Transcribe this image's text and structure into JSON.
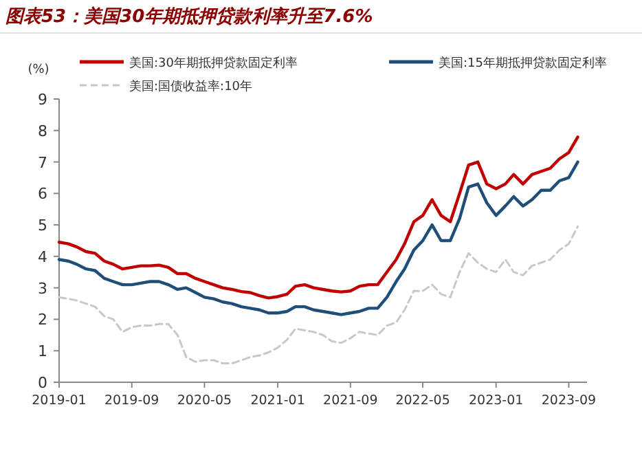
{
  "chart_data": {
    "type": "line",
    "title": "图表53：美国30年期抵押贷款利率升至7.6%",
    "ylabel": "(%)",
    "x": [
      "2019-01",
      "2019-02",
      "2019-03",
      "2019-04",
      "2019-05",
      "2019-06",
      "2019-07",
      "2019-08",
      "2019-09",
      "2019-10",
      "2019-11",
      "2019-12",
      "2020-01",
      "2020-02",
      "2020-03",
      "2020-04",
      "2020-05",
      "2020-06",
      "2020-07",
      "2020-08",
      "2020-09",
      "2020-10",
      "2020-11",
      "2020-12",
      "2021-01",
      "2021-02",
      "2021-03",
      "2021-04",
      "2021-05",
      "2021-06",
      "2021-07",
      "2021-08",
      "2021-09",
      "2021-10",
      "2021-11",
      "2021-12",
      "2022-01",
      "2022-02",
      "2022-03",
      "2022-04",
      "2022-05",
      "2022-06",
      "2022-07",
      "2022-08",
      "2022-09",
      "2022-10",
      "2022-11",
      "2022-12",
      "2023-01",
      "2023-02",
      "2023-03",
      "2023-04",
      "2023-05",
      "2023-06",
      "2023-07",
      "2023-08",
      "2023-09",
      "2023-10"
    ],
    "series": [
      {
        "name": "美国:30年期抵押贷款固定利率",
        "color": "#c00000",
        "line_style": "solid",
        "values": [
          4.45,
          4.4,
          4.3,
          4.15,
          4.1,
          3.85,
          3.75,
          3.6,
          3.65,
          3.7,
          3.7,
          3.72,
          3.65,
          3.45,
          3.45,
          3.3,
          3.2,
          3.1,
          3.0,
          2.95,
          2.88,
          2.85,
          2.75,
          2.68,
          2.72,
          2.8,
          3.05,
          3.1,
          3.0,
          2.95,
          2.9,
          2.87,
          2.9,
          3.05,
          3.1,
          3.1,
          3.5,
          3.9,
          4.4,
          5.1,
          5.3,
          5.8,
          5.3,
          5.1,
          6.0,
          6.9,
          7.0,
          6.3,
          6.15,
          6.3,
          6.6,
          6.3,
          6.6,
          6.7,
          6.8,
          7.1,
          7.3,
          7.79
        ]
      },
      {
        "name": "美国:15年期抵押贷款固定利率",
        "color": "#1f4e79",
        "line_style": "solid",
        "values": [
          3.9,
          3.85,
          3.75,
          3.6,
          3.55,
          3.3,
          3.2,
          3.1,
          3.1,
          3.15,
          3.2,
          3.2,
          3.1,
          2.95,
          3.0,
          2.85,
          2.7,
          2.65,
          2.55,
          2.5,
          2.4,
          2.35,
          2.3,
          2.2,
          2.2,
          2.25,
          2.4,
          2.4,
          2.3,
          2.25,
          2.2,
          2.15,
          2.2,
          2.25,
          2.35,
          2.35,
          2.7,
          3.2,
          3.6,
          4.2,
          4.5,
          5.0,
          4.5,
          4.5,
          5.2,
          6.2,
          6.3,
          5.7,
          5.3,
          5.6,
          5.9,
          5.6,
          5.8,
          6.1,
          6.1,
          6.4,
          6.5,
          7.0
        ]
      },
      {
        "name": "美国:国债收益率:10年",
        "color": "#c8c8c8",
        "line_style": "dashed",
        "values": [
          2.7,
          2.65,
          2.6,
          2.5,
          2.4,
          2.1,
          2.0,
          1.6,
          1.75,
          1.8,
          1.8,
          1.85,
          1.85,
          1.5,
          0.8,
          0.65,
          0.7,
          0.7,
          0.6,
          0.6,
          0.7,
          0.8,
          0.85,
          0.95,
          1.1,
          1.35,
          1.7,
          1.65,
          1.6,
          1.5,
          1.3,
          1.25,
          1.4,
          1.6,
          1.55,
          1.5,
          1.8,
          1.9,
          2.3,
          2.9,
          2.9,
          3.1,
          2.8,
          2.7,
          3.5,
          4.1,
          3.8,
          3.6,
          3.5,
          3.9,
          3.5,
          3.4,
          3.7,
          3.8,
          3.9,
          4.2,
          4.4,
          4.95
        ]
      }
    ],
    "xlim": [
      "2019-01",
      "2023-11"
    ],
    "xticks": [
      "2019-01",
      "2019-09",
      "2020-05",
      "2021-01",
      "2021-09",
      "2022-05",
      "2023-01",
      "2023-09"
    ],
    "ylim": [
      0,
      9
    ],
    "yticks": [
      0,
      1,
      2,
      3,
      4,
      5,
      6,
      7,
      8,
      9
    ],
    "grid": false,
    "legend": "top"
  }
}
